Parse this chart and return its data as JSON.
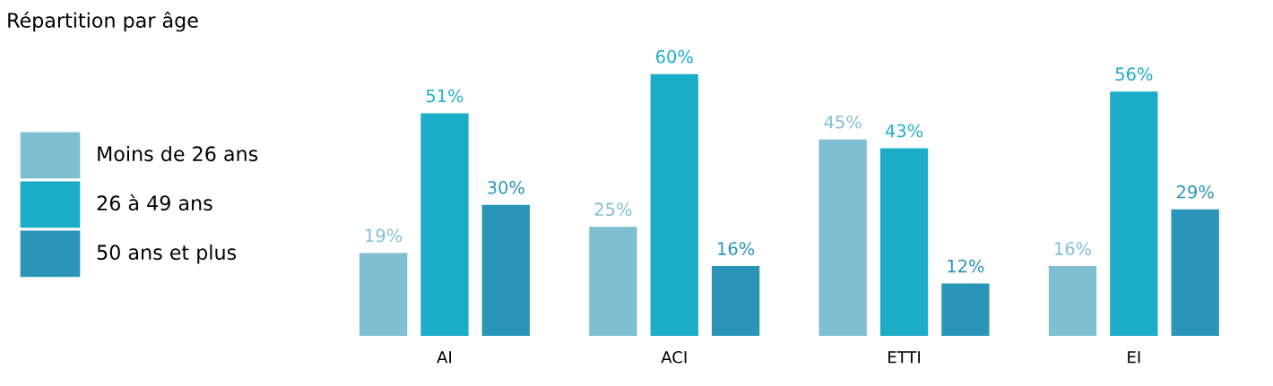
{
  "chart_data": {
    "type": "bar",
    "title": "Répartition par âge",
    "categories": [
      "AI",
      "ACI",
      "ETTI",
      "EI"
    ],
    "series": [
      {
        "name": "Moins de 26 ans",
        "color": "#80bfd1",
        "values": [
          19,
          25,
          45,
          16
        ],
        "value_labels": [
          "19%",
          "25%",
          "45%",
          "16%"
        ]
      },
      {
        "name": "26 à 49 ans",
        "color": "#1badc7",
        "values": [
          51,
          60,
          43,
          56
        ],
        "value_labels": [
          "51%",
          "60%",
          "43%",
          "56%"
        ]
      },
      {
        "name": "50 ans et plus",
        "color": "#2a95b8",
        "values": [
          30,
          16,
          12,
          29
        ],
        "value_labels": [
          "30%",
          "16%",
          "12%",
          "29%"
        ]
      }
    ],
    "legend": "left",
    "grid": false
  }
}
